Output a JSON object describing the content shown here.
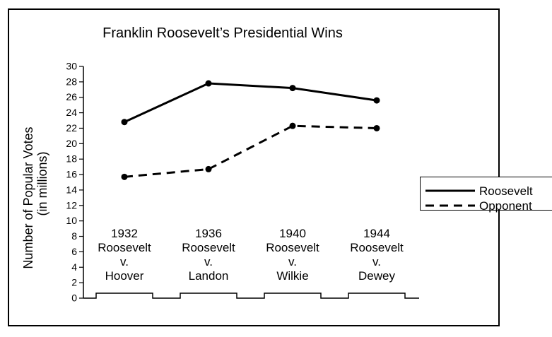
{
  "chart_data": {
    "type": "line",
    "title": "Franklin Roosevelt’s Presidential Wins",
    "ylabel_line1": "Number of Popular Votes",
    "ylabel_line2": "(in millions)",
    "xlabel": "",
    "ylim": [
      0,
      30
    ],
    "yticks": [
      0,
      2,
      4,
      6,
      8,
      10,
      12,
      14,
      16,
      18,
      20,
      22,
      24,
      26,
      28,
      30
    ],
    "categories": [
      {
        "year": "1932",
        "line2": "Roosevelt",
        "line3": "v.",
        "line4": "Hoover"
      },
      {
        "year": "1936",
        "line2": "Roosevelt",
        "line3": "v.",
        "line4": "Landon"
      },
      {
        "year": "1940",
        "line2": "Roosevelt",
        "line3": "v.",
        "line4": "Wilkie"
      },
      {
        "year": "1944",
        "line2": "Roosevelt",
        "line3": "v.",
        "line4": "Dewey"
      }
    ],
    "series": [
      {
        "name": "Roosevelt",
        "style": "solid",
        "values": [
          22.8,
          27.8,
          27.2,
          25.6
        ]
      },
      {
        "name": "Opponent",
        "style": "dashed",
        "values": [
          15.7,
          16.7,
          22.3,
          22.0
        ]
      }
    ],
    "legend_position": "right",
    "grid": false,
    "color": "#000000"
  }
}
